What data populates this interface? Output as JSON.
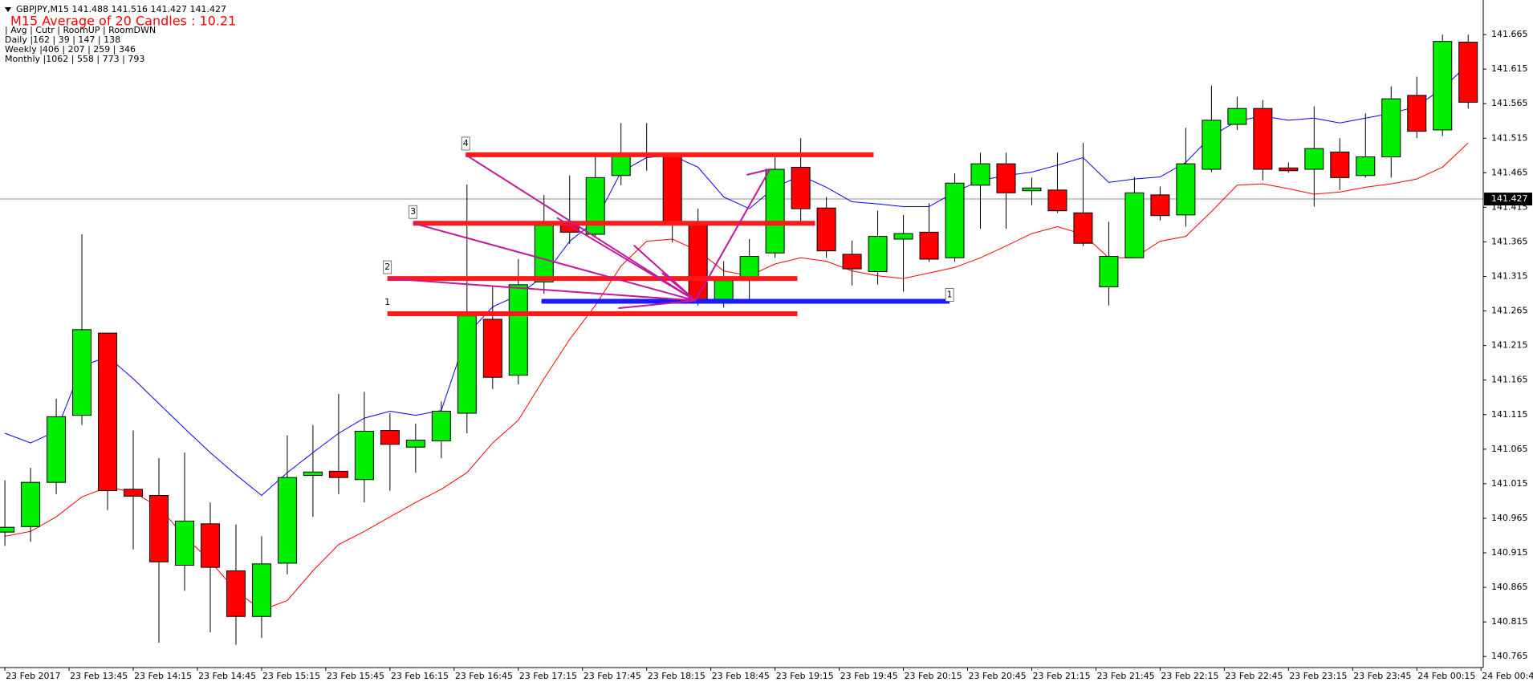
{
  "chart_data": {
    "type": "candlestick",
    "title": "GBPJPY,M15  141.488 141.516 141.427 141.427",
    "subtitle": "M15 Average of 20 Candles : 10.21",
    "info_lines": [
      "    | Avg | Cutr | RoomUP | RoomDWN",
      "Daily  |162 | 39 | 147 | 138",
      "Weekly |406 | 207 | 259 | 346",
      "Monthly |1062 | 558 | 773 | 793"
    ],
    "x_labels": [
      "23 Feb 2017",
      "23 Feb 13:45",
      "23 Feb 14:15",
      "23 Feb 14:45",
      "23 Feb 15:15",
      "23 Feb 15:45",
      "23 Feb 16:15",
      "23 Feb 16:45",
      "23 Feb 17:15",
      "23 Feb 17:45",
      "23 Feb 18:15",
      "23 Feb 18:45",
      "23 Feb 19:15",
      "23 Feb 19:45",
      "23 Feb 20:15",
      "23 Feb 20:45",
      "23 Feb 21:15",
      "23 Feb 21:45",
      "23 Feb 22:15",
      "23 Feb 22:45",
      "23 Feb 23:15",
      "23 Feb 23:45",
      "24 Feb 00:15",
      "24 Feb 00:4"
    ],
    "open": [
      140.945,
      140.953,
      141.017,
      141.114,
      141.233,
      141.007,
      140.998,
      140.897,
      140.957,
      140.889,
      140.823,
      140.9,
      141.027,
      141.033,
      141.021,
      141.092,
      141.068,
      141.077,
      141.117,
      141.253,
      141.172,
      141.307,
      141.39,
      141.376,
      141.461,
      141.489,
      141.493,
      141.393,
      141.282,
      141.309,
      141.349,
      141.473,
      141.414,
      141.347,
      141.322,
      141.369,
      141.379,
      141.342,
      141.447,
      141.478,
      141.439,
      141.44,
      141.407,
      141.3,
      141.342,
      141.433,
      141.404,
      141.47,
      141.535,
      141.558,
      141.472,
      141.47,
      141.495,
      141.461,
      141.488,
      141.577,
      141.527,
      141.654
    ],
    "high": [
      141.02,
      141.038,
      141.138,
      141.376,
      141.233,
      141.092,
      141.052,
      141.06,
      140.988,
      140.956,
      140.939,
      141.085,
      141.1,
      141.145,
      141.148,
      141.117,
      141.102,
      141.134,
      141.448,
      141.302,
      141.34,
      141.433,
      141.461,
      141.491,
      141.537,
      141.537,
      141.494,
      141.413,
      141.337,
      141.369,
      141.49,
      141.515,
      141.43,
      141.367,
      141.41,
      141.404,
      141.421,
      141.464,
      141.494,
      141.494,
      141.458,
      141.494,
      141.508,
      141.394,
      141.459,
      141.445,
      141.53,
      141.591,
      141.575,
      141.57,
      141.48,
      141.561,
      141.515,
      141.551,
      141.59,
      141.604,
      141.665,
      141.665
    ],
    "low": [
      140.925,
      140.931,
      141.0,
      141.1,
      140.977,
      140.92,
      140.785,
      140.86,
      140.8,
      140.782,
      140.792,
      140.884,
      140.967,
      141.0,
      140.988,
      141.005,
      141.031,
      141.052,
      141.088,
      141.152,
      141.159,
      141.29,
      141.362,
      141.373,
      141.447,
      141.468,
      141.364,
      141.273,
      141.27,
      141.28,
      141.342,
      141.39,
      141.342,
      141.302,
      141.303,
      141.293,
      141.336,
      141.336,
      141.384,
      141.384,
      141.418,
      141.407,
      141.359,
      141.273,
      141.342,
      141.396,
      141.387,
      141.466,
      141.527,
      141.454,
      141.465,
      141.416,
      141.44,
      141.458,
      141.458,
      141.515,
      141.518,
      141.558
    ],
    "close": [
      140.952,
      141.017,
      141.112,
      141.238,
      141.005,
      140.997,
      140.902,
      140.961,
      140.894,
      140.823,
      140.899,
      141.024,
      141.032,
      141.024,
      141.091,
      141.072,
      141.078,
      141.12,
      141.258,
      141.169,
      141.303,
      141.389,
      141.379,
      141.458,
      141.49,
      141.493,
      141.393,
      141.28,
      141.309,
      141.344,
      141.47,
      141.413,
      141.352,
      141.326,
      141.373,
      141.377,
      141.34,
      141.45,
      141.478,
      141.436,
      141.443,
      141.41,
      141.363,
      141.344,
      141.436,
      141.403,
      141.478,
      141.541,
      141.558,
      141.47,
      141.468,
      141.5,
      141.458,
      141.488,
      141.572,
      141.525,
      141.655,
      141.567
    ],
    "up_color": "#00ee00",
    "down_color": "#ff0000",
    "series": [
      {
        "color": "#0000ff",
        "values": [
          141.088,
          141.074,
          141.091,
          141.185,
          141.199,
          141.167,
          141.131,
          141.095,
          141.06,
          141.028,
          140.998,
          141.031,
          141.06,
          141.088,
          141.11,
          141.12,
          141.114,
          141.121,
          141.231,
          141.271,
          141.288,
          141.316,
          141.366,
          141.395,
          141.466,
          141.487,
          141.49,
          141.473,
          141.43,
          141.413,
          141.444,
          141.461,
          141.444,
          141.423,
          141.42,
          141.416,
          141.416,
          141.437,
          141.454,
          141.461,
          141.466,
          141.476,
          141.487,
          141.451,
          141.456,
          141.459,
          141.48,
          141.518,
          141.54,
          141.547,
          141.541,
          141.544,
          141.537,
          141.544,
          141.551,
          141.561,
          141.587,
          141.622
        ]
      },
      {
        "color": "#ff0000",
        "values": [
          140.939,
          140.946,
          140.967,
          140.996,
          141.01,
          141.003,
          140.981,
          140.939,
          140.903,
          140.86,
          140.832,
          140.846,
          140.889,
          140.927,
          140.946,
          140.967,
          140.988,
          141.007,
          141.031,
          141.074,
          141.107,
          141.167,
          141.224,
          141.273,
          141.33,
          141.366,
          141.369,
          141.352,
          141.323,
          141.316,
          141.333,
          141.342,
          141.337,
          141.323,
          141.316,
          141.312,
          141.32,
          141.328,
          141.342,
          141.359,
          141.377,
          141.387,
          141.376,
          141.342,
          141.342,
          141.366,
          141.373,
          141.409,
          141.447,
          141.449,
          141.442,
          141.434,
          141.437,
          141.444,
          141.449,
          141.456,
          141.473,
          141.508
        ]
      }
    ],
    "levels": [
      {
        "label": "4",
        "price": 141.491,
        "x_from": 17.95,
        "x_to": 33.84,
        "color": "#ff1a1a",
        "label_at": "start",
        "boxed": true
      },
      {
        "label": "3",
        "price": 141.392,
        "x_from": 15.9,
        "x_to": 31.56,
        "color": "#ff1a1a",
        "label_at": "start",
        "boxed": true
      },
      {
        "label": "2",
        "price": 141.312,
        "x_from": 14.9,
        "x_to": 30.87,
        "color": "#ff1a1a",
        "label_at": "start",
        "boxed": true
      },
      {
        "label": "1",
        "price": 141.261,
        "x_from": 14.9,
        "x_to": 30.87,
        "color": "#ff1a1a",
        "label_at": "start",
        "boxed": false
      },
      {
        "label": "1",
        "price": 141.279,
        "x_from": 20.9,
        "x_to": 36.8,
        "color": "#1a1aff",
        "label_at": "end",
        "boxed": true
      }
    ],
    "fan_color": "#c2189a",
    "fan_lines": [
      {
        "x": [
          17.95,
          26.9
        ],
        "y": [
          141.491,
          141.28
        ]
      },
      {
        "x": [
          15.9,
          26.9
        ],
        "y": [
          141.392,
          141.28
        ]
      },
      {
        "x": [
          14.9,
          26.9
        ],
        "y": [
          141.312,
          141.28
        ]
      },
      {
        "x": [
          21.5,
          26.9
        ],
        "y": [
          141.4,
          141.28
        ]
      },
      {
        "x": [
          23.9,
          26.9
        ],
        "y": [
          141.269,
          141.28
        ]
      },
      {
        "x": [
          24.5,
          26.9
        ],
        "y": [
          141.36,
          141.28
        ]
      },
      {
        "x": [
          25.6,
          26.9
        ],
        "y": [
          141.32,
          141.28
        ]
      },
      {
        "x": [
          26.9,
          29.8
        ],
        "y": [
          141.28,
          141.47
        ]
      },
      {
        "x": [
          28.9,
          29.8
        ],
        "y": [
          141.462,
          141.47
        ]
      }
    ],
    "current_price": 141.427,
    "ylim": [
      140.749,
      141.715
    ],
    "yticks": [
      141.665,
      141.615,
      141.565,
      141.515,
      141.465,
      141.415,
      141.365,
      141.315,
      141.265,
      141.215,
      141.165,
      141.115,
      141.065,
      141.015,
      140.965,
      140.915,
      140.865,
      140.815,
      140.765
    ]
  }
}
